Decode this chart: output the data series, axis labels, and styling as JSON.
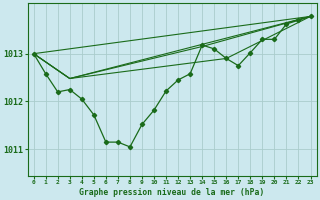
{
  "title": "Graphe pression niveau de la mer (hPa)",
  "background_color": "#cce8ee",
  "grid_color": "#aacccc",
  "line_color": "#1a6b1a",
  "xlim": [
    -0.5,
    23.5
  ],
  "ylim": [
    1010.45,
    1014.05
  ],
  "yticks": [
    1011,
    1012,
    1013
  ],
  "xticks": [
    0,
    1,
    2,
    3,
    4,
    5,
    6,
    7,
    8,
    9,
    10,
    11,
    12,
    13,
    14,
    15,
    16,
    17,
    18,
    19,
    20,
    21,
    22,
    23
  ],
  "main_series_x": [
    0,
    1,
    2,
    3,
    4,
    5,
    6,
    7,
    8,
    9,
    10,
    11,
    12,
    13,
    14,
    15,
    16,
    17,
    18,
    19,
    20,
    21,
    22,
    23
  ],
  "main_series_y": [
    1013.0,
    1012.58,
    1012.2,
    1012.25,
    1012.05,
    1011.72,
    1011.15,
    1011.15,
    1011.05,
    1011.52,
    1011.82,
    1012.22,
    1012.45,
    1012.58,
    1013.18,
    1013.1,
    1012.9,
    1012.75,
    1013.02,
    1013.3,
    1013.3,
    1013.62,
    1013.7,
    1013.78
  ],
  "trend_lines": [
    {
      "x": [
        0,
        23
      ],
      "y": [
        1012.95,
        1013.78
      ]
    },
    {
      "x": [
        0,
        3,
        23
      ],
      "y": [
        1012.95,
        1012.48,
        1013.78
      ]
    },
    {
      "x": [
        0,
        3,
        23
      ],
      "y": [
        1012.95,
        1012.48,
        1013.78
      ]
    },
    {
      "x": [
        0,
        23
      ],
      "y": [
        1012.95,
        1013.78
      ]
    }
  ],
  "fan_lines": [
    {
      "x": [
        0,
        3,
        14,
        23
      ],
      "y": [
        1012.95,
        1012.48,
        1013.15,
        1013.78
      ]
    },
    {
      "x": [
        0,
        3,
        14,
        23
      ],
      "y": [
        1012.95,
        1012.48,
        1013.1,
        1013.78
      ]
    },
    {
      "x": [
        0,
        3,
        16,
        23
      ],
      "y": [
        1012.95,
        1012.48,
        1012.9,
        1013.78
      ]
    },
    {
      "x": [
        0,
        3,
        23
      ],
      "y": [
        1012.95,
        1012.48,
        1013.78
      ]
    }
  ]
}
